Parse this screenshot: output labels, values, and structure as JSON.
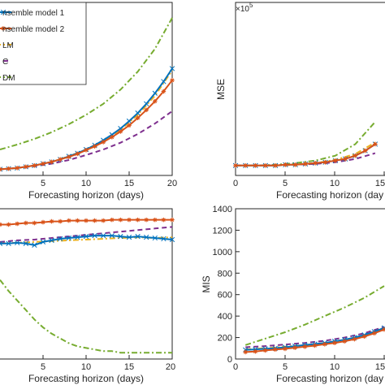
{
  "legend": {
    "entries": [
      {
        "label": "nsemble model 1",
        "color": "#0072BD",
        "dash": "solid",
        "marker": "x"
      },
      {
        "label": "nsemble model 2",
        "color": "#D95319",
        "dash": "solid",
        "marker": "star"
      },
      {
        "label": "LM",
        "color": "#EDB120",
        "dash": "dashdot"
      },
      {
        "label": "C",
        "color": "#7E2F8E",
        "dash": "dashed"
      },
      {
        "label": "DM",
        "color": "#77AC30",
        "dash": "dashdot"
      }
    ]
  },
  "chart_data": [
    {
      "id": "top-left",
      "type": "line",
      "xlabel": "Forecasting horizon (days)",
      "ylabel": "",
      "xlim": [
        0,
        20
      ],
      "xticks": [
        5,
        10,
        15,
        20
      ],
      "xticklabels": [
        "5",
        "10",
        "15",
        "20"
      ],
      "series": [
        {
          "color": "#0072BD",
          "dash": "solid",
          "marker": "x",
          "x": [
            0,
            1,
            2,
            3,
            4,
            5,
            6,
            7,
            8,
            9,
            10,
            11,
            12,
            13,
            14,
            15,
            16,
            17,
            18,
            19,
            20
          ],
          "y": [
            0.0,
            0.1,
            0.2,
            0.4,
            0.6,
            0.9,
            1.2,
            1.6,
            2.1,
            2.6,
            3.2,
            3.9,
            4.7,
            5.6,
            6.6,
            7.8,
            9.1,
            10.6,
            12.3,
            14.2,
            16.3
          ]
        },
        {
          "color": "#D95319",
          "dash": "solid",
          "marker": "star",
          "x": [
            0,
            1,
            2,
            3,
            4,
            5,
            6,
            7,
            8,
            9,
            10,
            11,
            12,
            13,
            14,
            15,
            16,
            17,
            18,
            19,
            20
          ],
          "y": [
            0.0,
            0.1,
            0.2,
            0.4,
            0.6,
            0.9,
            1.2,
            1.6,
            2.0,
            2.5,
            3.1,
            3.7,
            4.4,
            5.2,
            6.1,
            7.1,
            8.3,
            9.6,
            11.0,
            12.6,
            14.4
          ]
        },
        {
          "color": "#EDB120",
          "dash": "dashdot",
          "x": [
            0,
            2,
            4,
            6,
            8,
            10,
            12,
            14,
            16,
            18,
            20
          ],
          "y": [
            0.0,
            0.2,
            0.6,
            1.2,
            2.1,
            3.2,
            4.6,
            6.4,
            8.8,
            11.9,
            16.0
          ]
        },
        {
          "color": "#7E2F8E",
          "dash": "dashed",
          "x": [
            0,
            2,
            4,
            6,
            8,
            10,
            12,
            14,
            16,
            18,
            20
          ],
          "y": [
            0.0,
            0.2,
            0.5,
            0.9,
            1.5,
            2.3,
            3.2,
            4.3,
            5.7,
            7.4,
            9.4
          ]
        },
        {
          "color": "#77AC30",
          "dash": "dashdot",
          "x": [
            0,
            2,
            4,
            6,
            8,
            10,
            12,
            14,
            16,
            18,
            20
          ],
          "y": [
            3.2,
            4.0,
            4.9,
            6.0,
            7.3,
            8.8,
            10.6,
            12.9,
            15.8,
            19.5,
            24.5
          ]
        }
      ]
    },
    {
      "id": "top-right",
      "type": "line",
      "xlabel": "Forecasting horizon (day",
      "ylabel": "MSE",
      "exponent_label": "×10",
      "exponent": "5",
      "xlim": [
        0,
        20
      ],
      "xticks": [
        0,
        5,
        10,
        15
      ],
      "xticklabels": [
        "0",
        "5",
        "10",
        "15"
      ],
      "series": [
        {
          "color": "#0072BD",
          "dash": "solid",
          "marker": "x",
          "x": [
            1,
            2,
            3,
            4,
            5,
            6,
            7,
            8,
            9,
            10,
            11,
            12,
            13,
            14,
            15
          ],
          "y": [
            0.02,
            0.02,
            0.02,
            0.02,
            0.02,
            0.03,
            0.03,
            0.04,
            0.05,
            0.06,
            0.08,
            0.1,
            0.14,
            0.2,
            0.28
          ]
        },
        {
          "color": "#D95319",
          "dash": "solid",
          "marker": "star",
          "x": [
            1,
            2,
            3,
            4,
            5,
            6,
            7,
            8,
            9,
            10,
            11,
            12,
            13,
            14,
            15
          ],
          "y": [
            0.02,
            0.02,
            0.02,
            0.02,
            0.02,
            0.03,
            0.03,
            0.04,
            0.05,
            0.06,
            0.08,
            0.1,
            0.14,
            0.2,
            0.28
          ]
        },
        {
          "color": "#EDB120",
          "dash": "dashdot",
          "x": [
            1,
            3,
            5,
            7,
            9,
            11,
            13,
            15
          ],
          "y": [
            0.02,
            0.02,
            0.02,
            0.03,
            0.05,
            0.09,
            0.16,
            0.3
          ]
        },
        {
          "color": "#7E2F8E",
          "dash": "dashed",
          "x": [
            1,
            3,
            5,
            7,
            9,
            11,
            13,
            15
          ],
          "y": [
            0.02,
            0.02,
            0.02,
            0.03,
            0.04,
            0.06,
            0.1,
            0.17
          ]
        },
        {
          "color": "#77AC30",
          "dash": "dashdot",
          "x": [
            1,
            3,
            5,
            7,
            9,
            11,
            13,
            15
          ],
          "y": [
            0.02,
            0.02,
            0.03,
            0.05,
            0.08,
            0.14,
            0.28,
            0.55
          ]
        }
      ]
    },
    {
      "id": "bottom-left",
      "type": "line",
      "xlabel": "Forecasting horizon (days)",
      "ylabel": "",
      "xlim": [
        0,
        20
      ],
      "xticks": [
        5,
        10,
        15,
        20
      ],
      "xticklabels": [
        "5",
        "10",
        "15",
        "20"
      ],
      "series": [
        {
          "color": "#0072BD",
          "dash": "solid",
          "marker": "x",
          "x": [
            0,
            1,
            2,
            3,
            4,
            5,
            6,
            7,
            8,
            9,
            10,
            11,
            12,
            13,
            14,
            15,
            16,
            17,
            18,
            19,
            20
          ],
          "y": [
            0.78,
            0.78,
            0.785,
            0.78,
            0.77,
            0.79,
            0.8,
            0.81,
            0.815,
            0.82,
            0.825,
            0.83,
            0.83,
            0.83,
            0.825,
            0.82,
            0.825,
            0.82,
            0.815,
            0.81,
            0.805
          ]
        },
        {
          "color": "#D95319",
          "dash": "solid",
          "marker": "star",
          "x": [
            0,
            1,
            2,
            3,
            4,
            5,
            6,
            7,
            8,
            9,
            10,
            11,
            12,
            13,
            14,
            15,
            16,
            17,
            18,
            19,
            20
          ],
          "y": [
            0.9,
            0.9,
            0.905,
            0.91,
            0.91,
            0.915,
            0.92,
            0.92,
            0.925,
            0.925,
            0.925,
            0.925,
            0.925,
            0.93,
            0.93,
            0.93,
            0.93,
            0.93,
            0.93,
            0.93,
            0.93
          ]
        },
        {
          "color": "#EDB120",
          "dash": "dashdot",
          "x": [
            0,
            2,
            4,
            6,
            8,
            10,
            12,
            14,
            16,
            18,
            20
          ],
          "y": [
            0.78,
            0.785,
            0.79,
            0.795,
            0.8,
            0.805,
            0.81,
            0.815,
            0.82,
            0.815,
            0.82
          ]
        },
        {
          "color": "#7E2F8E",
          "dash": "dashed",
          "x": [
            0,
            2,
            4,
            6,
            8,
            10,
            12,
            14,
            16,
            18,
            20
          ],
          "y": [
            0.79,
            0.8,
            0.805,
            0.815,
            0.825,
            0.835,
            0.845,
            0.855,
            0.865,
            0.875,
            0.885
          ]
        },
        {
          "color": "#77AC30",
          "dash": "dashdot",
          "x": [
            0,
            1,
            2,
            3,
            4,
            5,
            6,
            7,
            8,
            9,
            10,
            11,
            12,
            13,
            14,
            15,
            16,
            17,
            18,
            19,
            20
          ],
          "y": [
            0.55,
            0.48,
            0.42,
            0.36,
            0.3,
            0.25,
            0.21,
            0.18,
            0.15,
            0.13,
            0.12,
            0.11,
            0.1,
            0.1,
            0.09,
            0.09,
            0.09,
            0.09,
            0.09,
            0.09,
            0.09
          ]
        }
      ]
    },
    {
      "id": "bottom-right",
      "type": "line",
      "xlabel": "Forecasting horizon (day",
      "ylabel": "MIS",
      "xlim": [
        0,
        20
      ],
      "ylim": [
        0,
        1400
      ],
      "xticks": [
        0,
        5,
        10,
        15
      ],
      "xticklabels": [
        "0",
        "5",
        "10",
        "15"
      ],
      "yticks": [
        0,
        200,
        400,
        600,
        800,
        1000,
        1200,
        1400
      ],
      "yticklabels": [
        "0",
        "200",
        "400",
        "600",
        "800",
        "1000",
        "1200",
        "1400"
      ],
      "series": [
        {
          "color": "#0072BD",
          "dash": "solid",
          "marker": "x",
          "x": [
            1,
            2,
            3,
            4,
            5,
            6,
            7,
            8,
            9,
            10,
            11,
            12,
            13,
            14,
            15
          ],
          "y": [
            85,
            90,
            95,
            100,
            110,
            120,
            130,
            140,
            150,
            165,
            180,
            200,
            225,
            255,
            290
          ]
        },
        {
          "color": "#D95319",
          "dash": "solid",
          "marker": "star",
          "x": [
            1,
            2,
            3,
            4,
            5,
            6,
            7,
            8,
            9,
            10,
            11,
            12,
            13,
            14,
            15
          ],
          "y": [
            65,
            70,
            80,
            88,
            95,
            105,
            115,
            125,
            138,
            150,
            165,
            185,
            210,
            240,
            275
          ]
        },
        {
          "color": "#EDB120",
          "dash": "dashdot",
          "x": [
            1,
            3,
            5,
            7,
            9,
            11,
            13,
            15
          ],
          "y": [
            90,
            100,
            115,
            130,
            150,
            180,
            220,
            290
          ]
        },
        {
          "color": "#7E2F8E",
          "dash": "dashed",
          "x": [
            1,
            3,
            5,
            7,
            9,
            11,
            13,
            15
          ],
          "y": [
            110,
            120,
            135,
            150,
            170,
            200,
            240,
            300
          ]
        },
        {
          "color": "#77AC30",
          "dash": "dashdot",
          "x": [
            1,
            3,
            5,
            7,
            9,
            11,
            13,
            15
          ],
          "y": [
            130,
            190,
            250,
            320,
            400,
            480,
            570,
            680
          ]
        }
      ]
    }
  ]
}
